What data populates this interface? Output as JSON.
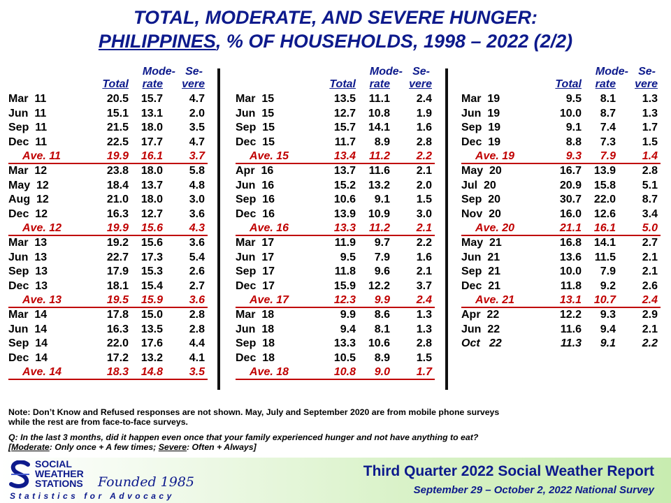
{
  "title": {
    "line1": "TOTAL, MODERATE, AND SEVERE HUNGER:",
    "line2_country": "PHILIPPINES",
    "line2_rest": ", % OF HOUSEHOLDS, 1998 – 2022 (2/2)"
  },
  "headers": {
    "total": "Total",
    "moderate_top": "Mode-",
    "moderate_bottom": "rate",
    "severe_top": "Se-",
    "severe_bottom": "vere"
  },
  "columns": [
    {
      "rows": [
        {
          "label": "Mar  11",
          "total": "20.5",
          "moderate": "15.7",
          "severe": "4.7"
        },
        {
          "label": "Jun  11",
          "total": "15.1",
          "moderate": "13.1",
          "severe": "2.0"
        },
        {
          "label": "Sep  11",
          "total": "21.5",
          "moderate": "18.0",
          "severe": "3.5"
        },
        {
          "label": "Dec  11",
          "total": "22.5",
          "moderate": "17.7",
          "severe": "4.7"
        },
        {
          "label": "Ave. 11",
          "total": "19.9",
          "moderate": "16.1",
          "severe": "3.7",
          "ave": true
        },
        {
          "label": "Mar  12",
          "total": "23.8",
          "moderate": "18.0",
          "severe": "5.8"
        },
        {
          "label": "May  12",
          "total": "18.4",
          "moderate": "13.7",
          "severe": "4.8"
        },
        {
          "label": "Aug  12",
          "total": "21.0",
          "moderate": "18.0",
          "severe": "3.0"
        },
        {
          "label": "Dec  12",
          "total": "16.3",
          "moderate": "12.7",
          "severe": "3.6"
        },
        {
          "label": "Ave. 12",
          "total": "19.9",
          "moderate": "15.6",
          "severe": "4.3",
          "ave": true
        },
        {
          "label": "Mar  13",
          "total": "19.2",
          "moderate": "15.6",
          "severe": "3.6"
        },
        {
          "label": "Jun  13",
          "total": "22.7",
          "moderate": "17.3",
          "severe": "5.4"
        },
        {
          "label": "Sep  13",
          "total": "17.9",
          "moderate": "15.3",
          "severe": "2.6"
        },
        {
          "label": "Dec  13",
          "total": "18.1",
          "moderate": "15.4",
          "severe": "2.7"
        },
        {
          "label": "Ave. 13",
          "total": "19.5",
          "moderate": "15.9",
          "severe": "3.6",
          "ave": true
        },
        {
          "label": "Mar  14",
          "total": "17.8",
          "moderate": "15.0",
          "severe": "2.8"
        },
        {
          "label": "Jun  14",
          "total": "16.3",
          "moderate": "13.5",
          "severe": "2.8"
        },
        {
          "label": "Sep  14",
          "total": "22.0",
          "moderate": "17.6",
          "severe": "4.4"
        },
        {
          "label": "Dec  14",
          "total": "17.2",
          "moderate": "13.2",
          "severe": "4.1"
        },
        {
          "label": "Ave. 14",
          "total": "18.3",
          "moderate": "14.8",
          "severe": "3.5",
          "ave": true
        }
      ]
    },
    {
      "rows": [
        {
          "label": "Mar  15",
          "total": "13.5",
          "moderate": "11.1",
          "severe": "2.4"
        },
        {
          "label": "Jun  15",
          "total": "12.7",
          "moderate": "10.8",
          "severe": "1.9"
        },
        {
          "label": "Sep  15",
          "total": "15.7",
          "moderate": "14.1",
          "severe": "1.6"
        },
        {
          "label": "Dec  15",
          "total": "11.7",
          "moderate": "8.9",
          "severe": "2.8"
        },
        {
          "label": "Ave. 15",
          "total": "13.4",
          "moderate": "11.2",
          "severe": "2.2",
          "ave": true
        },
        {
          "label": "Apr  16",
          "total": "13.7",
          "moderate": "11.6",
          "severe": "2.1"
        },
        {
          "label": "Jun  16",
          "total": "15.2",
          "moderate": "13.2",
          "severe": "2.0"
        },
        {
          "label": "Sep  16",
          "total": "10.6",
          "moderate": "9.1",
          "severe": "1.5"
        },
        {
          "label": "Dec  16",
          "total": "13.9",
          "moderate": "10.9",
          "severe": "3.0"
        },
        {
          "label": "Ave. 16",
          "total": "13.3",
          "moderate": "11.2",
          "severe": "2.1",
          "ave": true
        },
        {
          "label": "Mar  17",
          "total": "11.9",
          "moderate": "9.7",
          "severe": "2.2"
        },
        {
          "label": "Jun  17",
          "total": "9.5",
          "moderate": "7.9",
          "severe": "1.6"
        },
        {
          "label": "Sep  17",
          "total": "11.8",
          "moderate": "9.6",
          "severe": "2.1"
        },
        {
          "label": "Dec  17",
          "total": "15.9",
          "moderate": "12.2",
          "severe": "3.7"
        },
        {
          "label": "Ave. 17",
          "total": "12.3",
          "moderate": "9.9",
          "severe": "2.4",
          "ave": true
        },
        {
          "label": "Mar  18",
          "total": "9.9",
          "moderate": "8.6",
          "severe": "1.3"
        },
        {
          "label": "Jun  18",
          "total": "9.4",
          "moderate": "8.1",
          "severe": "1.3"
        },
        {
          "label": "Sep  18",
          "total": "13.3",
          "moderate": "10.6",
          "severe": "2.8"
        },
        {
          "label": "Dec  18",
          "total": "10.5",
          "moderate": "8.9",
          "severe": "1.5"
        },
        {
          "label": "Ave. 18",
          "total": "10.8",
          "moderate": "9.0",
          "severe": "1.7",
          "ave": true
        }
      ]
    },
    {
      "rows": [
        {
          "label": "Mar  19",
          "total": "9.5",
          "moderate": "8.1",
          "severe": "1.3"
        },
        {
          "label": "Jun  19",
          "total": "10.0",
          "moderate": "8.7",
          "severe": "1.3"
        },
        {
          "label": "Sep  19",
          "total": "9.1",
          "moderate": "7.4",
          "severe": "1.7"
        },
        {
          "label": "Dec  19",
          "total": "8.8",
          "moderate": "7.3",
          "severe": "1.5"
        },
        {
          "label": "Ave. 19",
          "total": "9.3",
          "moderate": "7.9",
          "severe": "1.4",
          "ave": true
        },
        {
          "label": "May  20",
          "total": "16.7",
          "moderate": "13.9",
          "severe": "2.8"
        },
        {
          "label": "Jul  20",
          "total": "20.9",
          "moderate": "15.8",
          "severe": "5.1"
        },
        {
          "label": "Sep  20",
          "total": "30.7",
          "moderate": "22.0",
          "severe": "8.7"
        },
        {
          "label": "Nov  20",
          "total": "16.0",
          "moderate": "12.6",
          "severe": "3.4"
        },
        {
          "label": "Ave. 20",
          "total": "21.1",
          "moderate": "16.1",
          "severe": "5.0",
          "ave": true
        },
        {
          "label": "May  21",
          "total": "16.8",
          "moderate": "14.1",
          "severe": "2.7"
        },
        {
          "label": "Jun  21",
          "total": "13.6",
          "moderate": "11.5",
          "severe": "2.1"
        },
        {
          "label": "Sep  21",
          "total": "10.0",
          "moderate": "7.9",
          "severe": "2.1"
        },
        {
          "label": "Dec  21",
          "total": "11.8",
          "moderate": "9.2",
          "severe": "2.6"
        },
        {
          "label": "Ave. 21",
          "total": "13.1",
          "moderate": "10.7",
          "severe": "2.4",
          "ave": true
        },
        {
          "label": "Apr  22",
          "total": "12.2",
          "moderate": "9.3",
          "severe": "2.9"
        },
        {
          "label": "Jun  22",
          "total": "11.6",
          "moderate": "9.4",
          "severe": "2.1"
        },
        {
          "label": "Oct   22",
          "total": "11.3",
          "moderate": "9.1",
          "severe": "2.2",
          "italic": true
        }
      ]
    }
  ],
  "notes": {
    "note_line1": "Note: Don’t Know and Refused responses are not shown. May, July and September 2020 are from mobile phone surveys",
    "note_line2": "while the rest are from face-to-face  surveys.",
    "question_line1": "Q: In the last 3 months, did it happen even once that your family experienced hunger and not have anything to eat?",
    "def_open": "[",
    "def_moderate": "Moderate",
    "def_mid": ": Only once + A few times; ",
    "def_severe": "Severe",
    "def_close": ": Often + Always]"
  },
  "footer": {
    "logo_line1": "SOCIAL",
    "logo_line2": "WEATHER",
    "logo_line3": "STATIONS",
    "founded": "Founded 1985",
    "tagline": "Statistics for Advocacy",
    "report": "Third Quarter 2022 Social Weather Report",
    "survey": "September 29 – October 2, 2022 National Survey"
  },
  "colors": {
    "title_blue": "#0d1a8c",
    "average_red": "#c00000"
  }
}
